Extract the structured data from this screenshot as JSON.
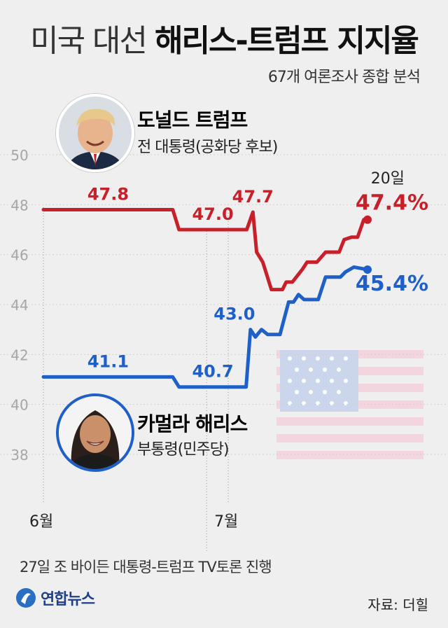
{
  "header": {
    "title_light": "미국 대선",
    "title_bold": "해리스-트럼프 지지율",
    "subtitle": "67개 여론조사 종합 분석"
  },
  "candidates": {
    "trump": {
      "name": "도널드 트럼프",
      "role": "전 대통령(공화당 후보)",
      "color": "#c8202a"
    },
    "harris": {
      "name": "카멀라 해리스",
      "role": "부통령(민주당)",
      "color": "#1f5fc8"
    }
  },
  "chart_data": {
    "type": "line",
    "ylim": [
      38,
      50
    ],
    "yticks": [
      38,
      40,
      42,
      44,
      46,
      48,
      50
    ],
    "xticks": [
      {
        "label": "6월",
        "day": 0
      },
      {
        "label": "7월",
        "day": 30
      }
    ],
    "series": [
      {
        "name": "도널드 트럼프",
        "color": "#c8202a",
        "points": [
          [
            0,
            47.8
          ],
          [
            21,
            47.8
          ],
          [
            22,
            47.0
          ],
          [
            33,
            47.0
          ],
          [
            34,
            47.7
          ],
          [
            34.6,
            46.1
          ],
          [
            35.6,
            45.7
          ],
          [
            37,
            44.6
          ],
          [
            38.8,
            44.6
          ],
          [
            39.4,
            44.9
          ],
          [
            40.4,
            44.9
          ],
          [
            42,
            45.4
          ],
          [
            42.8,
            45.7
          ],
          [
            44.4,
            45.7
          ],
          [
            45.8,
            46.1
          ],
          [
            48,
            46.1
          ],
          [
            48.8,
            46.6
          ],
          [
            50,
            46.7
          ],
          [
            51,
            46.7
          ],
          [
            52,
            47.4
          ],
          [
            52.6,
            47.4
          ]
        ],
        "labels": [
          {
            "day": 10.5,
            "value": 47.8,
            "text": "47.8"
          },
          {
            "day": 27.5,
            "value": 47.0,
            "text": "47.0"
          },
          {
            "day": 34,
            "value": 47.7,
            "text": "47.7"
          }
        ],
        "end_label": "47.4%"
      },
      {
        "name": "카멀라 해리스",
        "color": "#1f5fc8",
        "points": [
          [
            0,
            41.1
          ],
          [
            21,
            41.1
          ],
          [
            22,
            40.7
          ],
          [
            32.9,
            40.7
          ],
          [
            33.6,
            43.0
          ],
          [
            34.4,
            42.7
          ],
          [
            35.4,
            43.0
          ],
          [
            36.4,
            42.8
          ],
          [
            38.4,
            42.8
          ],
          [
            39.8,
            44.1
          ],
          [
            40.6,
            44.1
          ],
          [
            41.4,
            44.4
          ],
          [
            42.3,
            44.2
          ],
          [
            44.6,
            44.2
          ],
          [
            45.8,
            45.1
          ],
          [
            48.2,
            45.1
          ],
          [
            49,
            45.3
          ],
          [
            50.4,
            45.5
          ],
          [
            52.6,
            45.4
          ]
        ],
        "labels": [
          {
            "day": 10.5,
            "value": 41.1,
            "text": "41.1"
          },
          {
            "day": 27.5,
            "value": 40.7,
            "text": "40.7"
          },
          {
            "day": 31,
            "value": 43.0,
            "text": "43.0"
          }
        ],
        "end_label": "45.4%"
      }
    ],
    "end_date_label": "20일",
    "event_day": 26.5
  },
  "footer": {
    "footnote": "27일 조 바이든 대통령-트럼프 TV토론 진행",
    "logo_text": "연합뉴스",
    "source": "자료: 더힐"
  }
}
